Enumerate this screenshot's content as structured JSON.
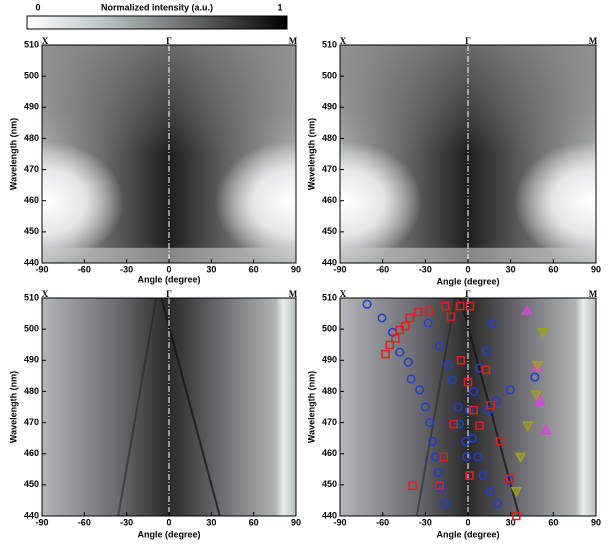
{
  "colorbar": {
    "title": "Normalized intensity (a.u.)",
    "ticks": [
      0,
      1
    ]
  },
  "chart_data": [
    {
      "type": "heatmap",
      "top_labels": [
        "X",
        "Γ",
        "M"
      ],
      "x_label": "Angle (degree)",
      "y_label": "Wavelength (nm)",
      "xlim": [
        -90,
        90
      ],
      "xticks": [
        -90,
        -60,
        -30,
        0,
        30,
        60,
        90
      ],
      "ylim": [
        440,
        510
      ],
      "yticks": [
        440,
        450,
        460,
        470,
        480,
        490,
        500,
        510
      ]
    },
    {
      "type": "heatmap",
      "top_labels": [
        "X",
        "Γ",
        "M"
      ],
      "x_label": "Angle (degree)",
      "y_label": "Wavelength (nm)",
      "xlim": [
        -90,
        90
      ],
      "xticks": [
        -90,
        -60,
        -30,
        0,
        30,
        60,
        90
      ],
      "ylim": [
        440,
        510
      ],
      "yticks": [
        440,
        450,
        460,
        470,
        480,
        490,
        500,
        510
      ]
    },
    {
      "type": "heatmap",
      "top_labels": [
        "X",
        "Γ",
        "M"
      ],
      "x_label": "Angle (degree)",
      "y_label": "Wavelength (nm)",
      "xlim": [
        -90,
        90
      ],
      "xticks": [
        -90,
        -60,
        -30,
        0,
        30,
        60,
        90
      ],
      "ylim": [
        440,
        510
      ],
      "yticks": [
        440,
        450,
        460,
        470,
        480,
        490,
        500,
        510
      ]
    },
    {
      "type": "scatter",
      "top_labels": [
        "X",
        "Γ",
        "M"
      ],
      "x_label": "Angle (degree)",
      "y_label": "Wavelength (nm)",
      "xlim": [
        -90,
        90
      ],
      "xticks": [
        -90,
        -60,
        -30,
        0,
        30,
        60,
        90
      ],
      "ylim": [
        440,
        510
      ],
      "yticks": [
        440,
        450,
        460,
        470,
        480,
        490,
        500,
        510
      ],
      "series": [
        {
          "marker": "circle",
          "color": "#1f3fd0",
          "x": [
            -71,
            -60.5,
            -53,
            -48,
            -42,
            -40,
            -34,
            -30,
            -27,
            -25,
            -23,
            -21,
            -19,
            -16,
            -28,
            -20,
            -14,
            -11,
            -7,
            -6,
            -1.4,
            17,
            13,
            8,
            4,
            1,
            -1,
            3,
            7,
            10.5,
            15.5,
            20.5,
            29.6,
            19.7,
            14,
            29,
            47
          ],
          "y": [
            508,
            503.6,
            499,
            492.6,
            489.4,
            484,
            480.5,
            475,
            470,
            464,
            459,
            454,
            449,
            444,
            502,
            494.6,
            488.5,
            483.7,
            475,
            469.5,
            464,
            502,
            493,
            487.5,
            480,
            474,
            459,
            465,
            459,
            453,
            448,
            444,
            480.5,
            477,
            474,
            451.5,
            484.6
          ]
        },
        {
          "marker": "square",
          "color": "#e0201c",
          "x": [
            -58,
            -55,
            -51,
            -48,
            -44,
            -41,
            -35,
            -27,
            -16,
            -5.6,
            1.4,
            -12,
            -5,
            0,
            12.6,
            16,
            -10,
            -17,
            1,
            -20,
            -39,
            29.5,
            22.5,
            34,
            8,
            4
          ],
          "y": [
            492,
            494.9,
            497,
            499.7,
            501,
            503.6,
            505.5,
            506,
            507.4,
            507.4,
            507.4,
            504,
            490,
            483,
            487,
            475.6,
            469.5,
            459,
            453,
            449.7,
            449.7,
            452,
            464,
            440,
            469,
            474
          ]
        },
        {
          "marker": "triangle-up",
          "color": "#e040e0",
          "x": [
            41.5,
            48.5,
            50.6,
            54.8
          ],
          "y": [
            506,
            488,
            477,
            467.6
          ]
        },
        {
          "marker": "triangle-down",
          "color": "#a0a020",
          "x": [
            52.8,
            49,
            48,
            42,
            37,
            34
          ],
          "y": [
            499,
            488.5,
            479,
            469,
            459,
            448
          ]
        }
      ]
    }
  ]
}
